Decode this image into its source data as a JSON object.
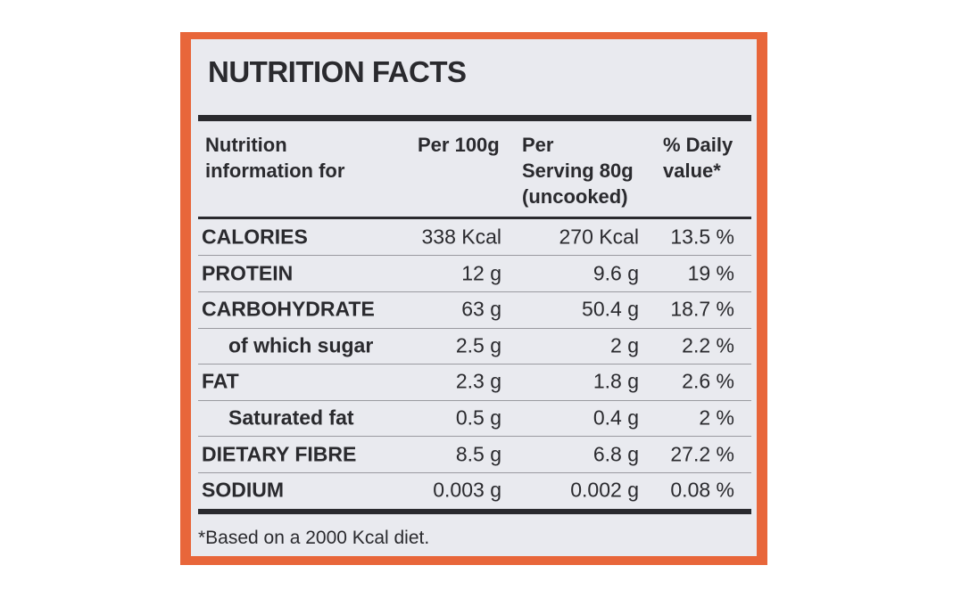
{
  "title": "NUTRITION FACTS",
  "table": {
    "header": [
      [
        "Nutrition",
        "information for"
      ],
      [
        "Per 100g"
      ],
      [
        "Per",
        "Serving 80g",
        "(uncooked)"
      ],
      [
        "% Daily",
        "value*"
      ]
    ],
    "rows": [
      [
        "CALORIES",
        "338 Kcal",
        "270 Kcal",
        "13.5 %"
      ],
      [
        "PROTEIN",
        "12 g",
        "9.6 g",
        "19 %"
      ],
      [
        "CARBOHYDRATE",
        "63 g",
        "50.4 g",
        "18.7 %"
      ],
      [
        "of which sugar",
        "2.5 g",
        "2 g",
        "2.2 %"
      ],
      [
        "FAT",
        "2.3 g",
        "1.8 g",
        "2.6 %"
      ],
      [
        "Saturated fat",
        "0.5 g",
        "0.4 g",
        "2 %"
      ],
      [
        "DIETARY FIBRE",
        "8.5 g",
        "6.8 g",
        "27.2 %"
      ],
      [
        "SODIUM",
        "0.003 g",
        "0.002 g",
        "0.08 %"
      ]
    ]
  },
  "footnote": "*Based on a 2000 Kcal diet."
}
